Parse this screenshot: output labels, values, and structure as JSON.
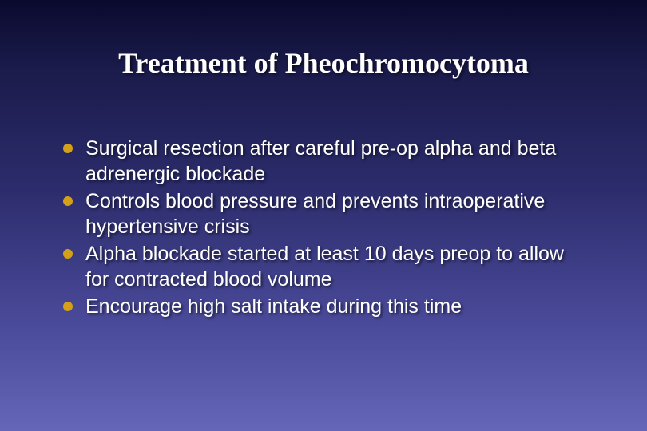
{
  "slide": {
    "title": "Treatment of Pheochromocytoma",
    "title_fontsize": 36,
    "title_color": "#ffffff",
    "background_gradient_top": "#0a0a2e",
    "background_gradient_bottom": "#6666b8",
    "bullet_color": "#d4a017",
    "body_text_color": "#ffffff",
    "body_fontsize": 25,
    "bullets": [
      {
        "text": "Surgical resection after careful pre-op alpha and beta adrenergic blockade"
      },
      {
        "text": "Controls blood pressure and prevents intraoperative hypertensive crisis"
      },
      {
        "text": "Alpha blockade started at least 10 days preop to allow for contracted blood volume"
      },
      {
        "text": "Encourage high salt intake during this time"
      }
    ]
  }
}
